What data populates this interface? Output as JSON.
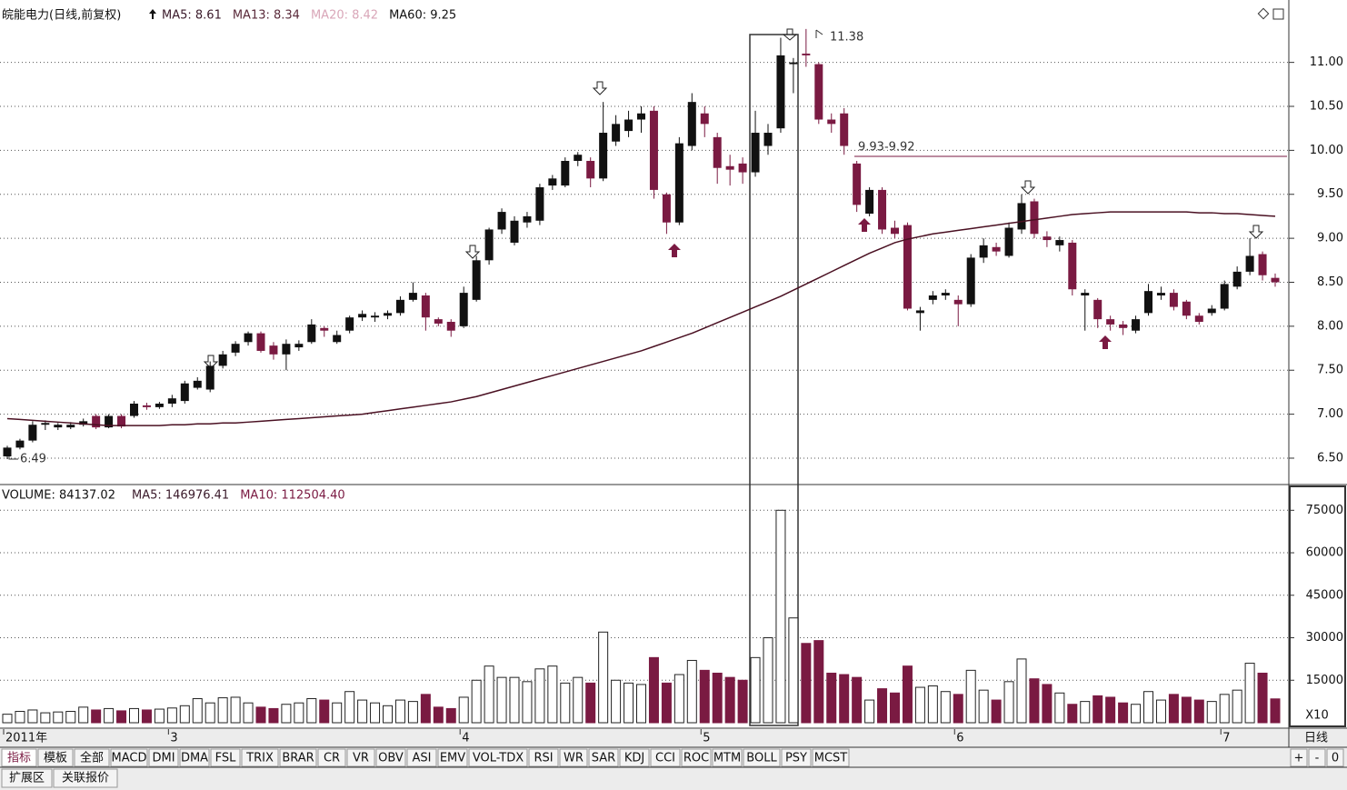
{
  "chart_data": [
    {
      "type": "candlestick",
      "title": "皖能电力(日线,前复权)",
      "header_items": [
        {
          "text": "MA5: 8.61",
          "color": "#3a1a2a"
        },
        {
          "text": "MA13: 8.34",
          "color": "#5a2a3a"
        },
        {
          "text": "MA20: 8.42",
          "color": "#d9a6b8"
        }
      ],
      "annotations": [
        "11.38",
        "6.49",
        "9.93-9.92"
      ],
      "categories": [
        "2011年",
        null,
        null,
        null,
        null,
        null,
        null,
        null,
        null,
        null,
        null,
        null,
        null,
        "3",
        null,
        null,
        null,
        null,
        null,
        null,
        null,
        null,
        null,
        null,
        null,
        null,
        null,
        null,
        null,
        null,
        null,
        null,
        null,
        null,
        null,
        null,
        "4",
        null,
        null,
        null,
        null,
        null,
        null,
        null,
        null,
        null,
        null,
        null,
        null,
        null,
        null,
        null,
        null,
        null,
        null,
        "5",
        null,
        null,
        null,
        null,
        null,
        null,
        null,
        null,
        null,
        null,
        null,
        null,
        null,
        null,
        null,
        null,
        null,
        null,
        null,
        "6",
        null,
        null,
        null,
        null,
        null,
        null,
        null,
        null,
        null,
        null,
        null,
        null,
        null,
        null,
        null,
        null,
        null,
        null,
        null,
        null,
        "7",
        null,
        null,
        null,
        null
      ],
      "open": [
        6.52,
        6.62,
        6.7,
        6.88,
        6.85,
        6.85,
        6.88,
        6.98,
        6.85,
        6.98,
        6.98,
        7.1,
        7.08,
        7.12,
        7.15,
        7.3,
        7.28,
        7.55,
        7.7,
        7.82,
        7.92,
        7.78,
        7.68,
        7.76,
        7.82,
        7.98,
        7.82,
        7.95,
        8.1,
        8.1,
        8.12,
        8.15,
        8.3,
        8.35,
        8.08,
        8.05,
        8.0,
        8.3,
        8.75,
        9.1,
        8.95,
        9.18,
        9.2,
        9.6,
        9.6,
        9.88,
        9.88,
        9.68,
        10.1,
        10.22,
        10.35,
        10.45,
        9.5,
        9.18,
        10.05,
        10.42,
        10.15,
        9.82,
        9.85,
        9.75,
        10.05,
        10.25,
        10.98,
        11.1,
        10.98,
        10.35,
        10.42,
        9.85,
        9.28,
        9.55,
        9.12,
        9.15,
        8.15,
        8.3,
        8.35,
        8.3,
        8.25,
        8.78,
        8.9,
        8.8,
        9.1,
        9.42,
        9.02,
        8.92,
        8.95,
        8.35,
        8.3,
        8.08,
        8.02,
        7.95,
        8.15,
        8.35,
        8.38,
        8.28,
        8.12,
        8.15,
        8.2,
        8.45,
        8.62,
        8.82,
        8.55
      ],
      "high": [
        6.64,
        6.72,
        6.92,
        6.93,
        6.9,
        6.91,
        6.95,
        7.0,
        7.0,
        7.0,
        7.15,
        7.13,
        7.14,
        7.22,
        7.38,
        7.42,
        7.6,
        7.72,
        7.83,
        7.94,
        7.94,
        7.82,
        7.85,
        7.84,
        8.08,
        8.0,
        7.95,
        8.12,
        8.18,
        8.16,
        8.18,
        8.34,
        8.5,
        8.38,
        8.1,
        8.08,
        8.45,
        8.8,
        9.12,
        9.34,
        9.25,
        9.3,
        9.62,
        9.72,
        9.92,
        9.98,
        9.92,
        10.55,
        10.4,
        10.45,
        10.5,
        10.5,
        9.52,
        10.15,
        10.65,
        10.5,
        10.2,
        9.95,
        9.92,
        10.45,
        10.3,
        11.28,
        11.05,
        11.38,
        11.0,
        10.42,
        10.48,
        9.88,
        9.58,
        9.58,
        9.2,
        9.18,
        8.22,
        8.4,
        8.42,
        8.35,
        8.82,
        9.0,
        8.95,
        9.18,
        9.5,
        9.45,
        9.08,
        9.02,
        8.98,
        8.42,
        8.32,
        8.12,
        8.06,
        8.12,
        8.48,
        8.45,
        8.42,
        8.3,
        8.15,
        8.24,
        8.52,
        8.68,
        9.0,
        8.85,
        8.6
      ],
      "low": [
        6.49,
        6.6,
        6.68,
        6.82,
        6.82,
        6.83,
        6.86,
        6.83,
        6.84,
        6.84,
        6.96,
        7.05,
        7.06,
        7.08,
        7.12,
        7.28,
        7.25,
        7.52,
        7.66,
        7.78,
        7.7,
        7.62,
        7.5,
        7.72,
        7.8,
        7.88,
        7.8,
        7.92,
        8.06,
        8.05,
        8.08,
        8.12,
        8.28,
        7.95,
        8.0,
        7.88,
        7.98,
        8.28,
        8.7,
        9.05,
        8.92,
        9.12,
        9.15,
        9.55,
        9.58,
        9.82,
        9.58,
        9.65,
        10.05,
        10.15,
        10.2,
        9.45,
        9.05,
        9.15,
        10.0,
        10.15,
        9.62,
        9.6,
        9.62,
        9.7,
        9.95,
        10.2,
        10.65,
        10.95,
        10.3,
        10.2,
        9.95,
        9.3,
        9.25,
        9.05,
        9.0,
        8.18,
        7.95,
        8.25,
        8.3,
        8.0,
        8.22,
        8.72,
        8.8,
        8.78,
        9.05,
        9.0,
        8.9,
        8.85,
        8.35,
        7.95,
        7.98,
        7.95,
        7.9,
        7.92,
        8.12,
        8.3,
        8.18,
        8.08,
        8.02,
        8.12,
        8.18,
        8.42,
        8.58,
        8.52,
        8.45
      ],
      "close": [
        6.62,
        6.7,
        6.88,
        6.9,
        6.88,
        6.88,
        6.92,
        6.85,
        6.98,
        6.86,
        7.12,
        7.08,
        7.12,
        7.18,
        7.35,
        7.38,
        7.55,
        7.68,
        7.8,
        7.92,
        7.72,
        7.68,
        7.8,
        7.8,
        8.02,
        7.95,
        7.9,
        8.1,
        8.14,
        8.12,
        8.15,
        8.3,
        8.38,
        8.1,
        8.03,
        7.95,
        8.38,
        8.75,
        9.1,
        9.3,
        9.2,
        9.25,
        9.58,
        9.68,
        9.88,
        9.95,
        9.68,
        10.2,
        10.3,
        10.35,
        10.42,
        9.55,
        9.18,
        10.08,
        10.55,
        10.3,
        9.8,
        9.78,
        9.75,
        10.2,
        10.2,
        11.08,
        11.0,
        11.08,
        10.35,
        10.3,
        10.05,
        9.38,
        9.55,
        9.1,
        9.05,
        8.2,
        8.18,
        8.35,
        8.38,
        8.25,
        8.78,
        8.92,
        8.85,
        9.12,
        9.4,
        9.05,
        8.98,
        8.98,
        8.42,
        8.38,
        8.08,
        8.02,
        7.98,
        8.08,
        8.4,
        8.38,
        8.22,
        8.12,
        8.05,
        8.2,
        8.48,
        8.62,
        8.8,
        8.58,
        8.5
      ],
      "up_color": "#111111",
      "down_color": "#7a1a42",
      "series": [
        {
          "name": "MA60: 9.25",
          "color": "#4a1022",
          "values": [
            6.95,
            6.94,
            6.93,
            6.92,
            6.91,
            6.9,
            6.89,
            6.88,
            6.87,
            6.87,
            6.87,
            6.87,
            6.87,
            6.88,
            6.88,
            6.89,
            6.89,
            6.9,
            6.9,
            6.91,
            6.92,
            6.93,
            6.94,
            6.95,
            6.96,
            6.97,
            6.98,
            6.99,
            7.0,
            7.02,
            7.04,
            7.06,
            7.08,
            7.1,
            7.12,
            7.14,
            7.17,
            7.2,
            7.24,
            7.28,
            7.32,
            7.36,
            7.4,
            7.44,
            7.48,
            7.52,
            7.56,
            7.6,
            7.64,
            7.68,
            7.72,
            7.77,
            7.82,
            7.87,
            7.92,
            7.98,
            8.04,
            8.1,
            8.16,
            8.22,
            8.28,
            8.34,
            8.41,
            8.48,
            8.55,
            8.62,
            8.69,
            8.76,
            8.83,
            8.89,
            8.95,
            8.99,
            9.02,
            9.05,
            9.07,
            9.09,
            9.11,
            9.13,
            9.15,
            9.17,
            9.19,
            9.21,
            9.23,
            9.25,
            9.27,
            9.28,
            9.29,
            9.3,
            9.3,
            9.3,
            9.3,
            9.3,
            9.3,
            9.3,
            9.29,
            9.29,
            9.28,
            9.28,
            9.27,
            9.26,
            9.25
          ]
        }
      ],
      "ylim": [
        6.2,
        11.42
      ],
      "yticks": [
        {
          "value": 6.5,
          "label": "6.50"
        },
        {
          "value": 7,
          "label": "7.00"
        },
        {
          "value": 7.5,
          "label": "7.50"
        },
        {
          "value": 8,
          "label": "8.00"
        },
        {
          "value": 8.5,
          "label": "8.50"
        },
        {
          "value": 9,
          "label": "9.00"
        },
        {
          "value": 9.5,
          "label": "9.50"
        },
        {
          "value": 10,
          "label": "10.00"
        },
        {
          "value": 10.5,
          "label": "10.50"
        },
        {
          "value": 11,
          "label": "11.00"
        }
      ],
      "grid": true
    },
    {
      "type": "bar",
      "title": "VOLUME: 84137.02",
      "header_items": [
        {
          "text": "MA5: 146976.41",
          "color": "#3a1a2a"
        },
        {
          "text": "MA10: 112504.40",
          "color": "#7a1a42"
        }
      ],
      "unit_label": "X10",
      "values": [
        3000,
        4000,
        4500,
        3500,
        3800,
        4000,
        5500,
        4500,
        5000,
        4200,
        5000,
        4500,
        4800,
        5200,
        6000,
        8500,
        7000,
        8800,
        9000,
        7000,
        5500,
        5000,
        6500,
        7000,
        8500,
        8000,
        7000,
        11000,
        8000,
        7000,
        6000,
        8000,
        7500,
        10000,
        5500,
        5000,
        9000,
        15000,
        20000,
        16000,
        16000,
        14500,
        19000,
        20000,
        14000,
        16000,
        14000,
        32000,
        15000,
        14000,
        13500,
        23000,
        14000,
        17000,
        22000,
        18500,
        17500,
        16000,
        15000,
        23000,
        30000,
        75000,
        37000,
        28000,
        29000,
        17500,
        17000,
        16000,
        8000,
        12000,
        10500,
        20000,
        12500,
        13000,
        11000,
        10000,
        18500,
        11500,
        8000,
        14500,
        22500,
        15500,
        13500,
        10500,
        6500,
        7500,
        9500,
        9000,
        7000,
        6500,
        11000,
        8000,
        10000,
        9000,
        8000,
        7500,
        10000,
        11500,
        21000,
        17500,
        8414
      ],
      "ylim": [
        0,
        82800
      ],
      "yticks": [
        15000,
        30000,
        45000,
        60000,
        75000
      ],
      "grid": true
    }
  ],
  "toolbar": {
    "tabs": [
      "指标",
      "模板",
      "全部",
      "MACD",
      "DMI",
      "DMA",
      "FSL",
      "TRIX",
      "BRAR",
      "CR",
      "VR",
      "OBV",
      "ASI",
      "EMV",
      "VOL-TDX",
      "RSI",
      "WR",
      "SAR",
      "KDJ",
      "CCI",
      "ROC",
      "MTM",
      "BOLL",
      "PSY",
      "MCST"
    ],
    "period": "日线",
    "zoom": [
      "+",
      "-",
      "0"
    ],
    "bottom_tabs": [
      "扩展区",
      "关联报价"
    ]
  }
}
